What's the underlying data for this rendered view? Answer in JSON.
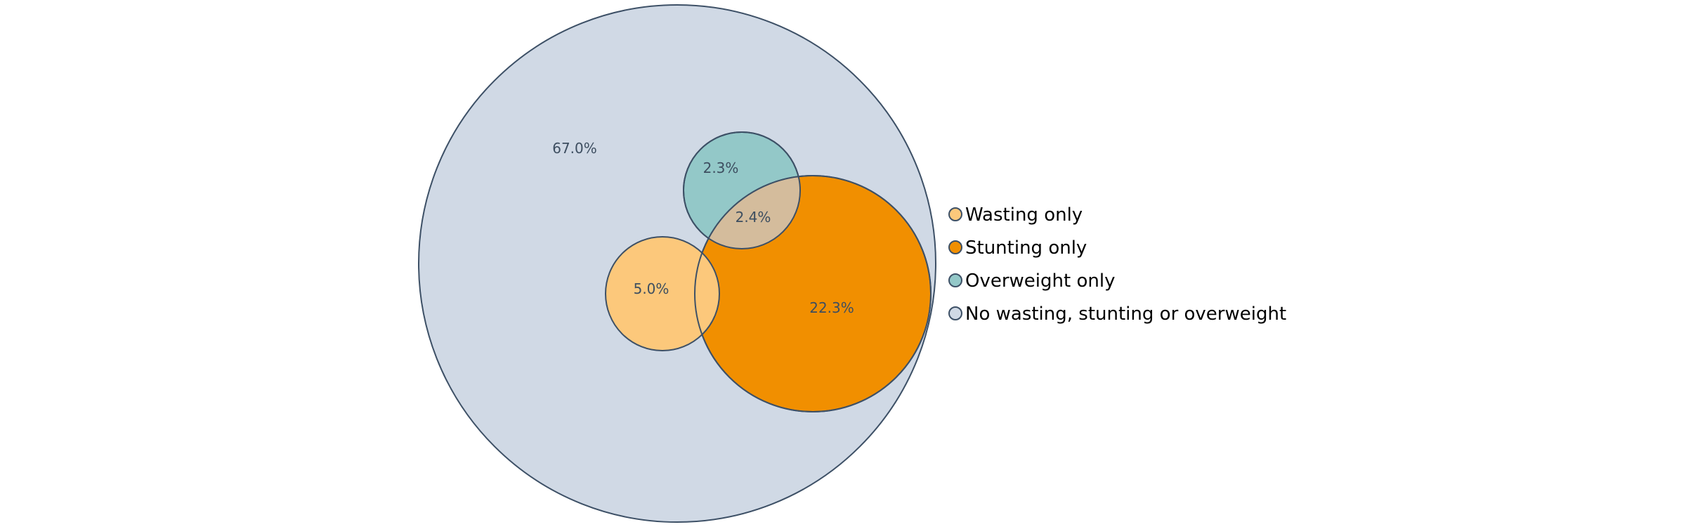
{
  "colors": {
    "outline": "#3d5066",
    "no_condition": "#d0d9e5",
    "wasting": "#fcc87b",
    "stunting": "#f18f00",
    "overweight": "#93c8c8",
    "overlap_stunting_overweight": "#d4bc9c",
    "label_text": "#3d4e60"
  },
  "regions": {
    "no_condition_pct": "67.0%",
    "wasting_pct": "5.0%",
    "stunting_pct": "22.3%",
    "overweight_pct": "2.3%",
    "stunting_overweight_pct": "2.4%"
  },
  "legend": {
    "wasting": "Wasting only",
    "stunting": "Stunting only",
    "overweight": "Overweight only",
    "none": "No wasting, stunting or overweight"
  }
}
